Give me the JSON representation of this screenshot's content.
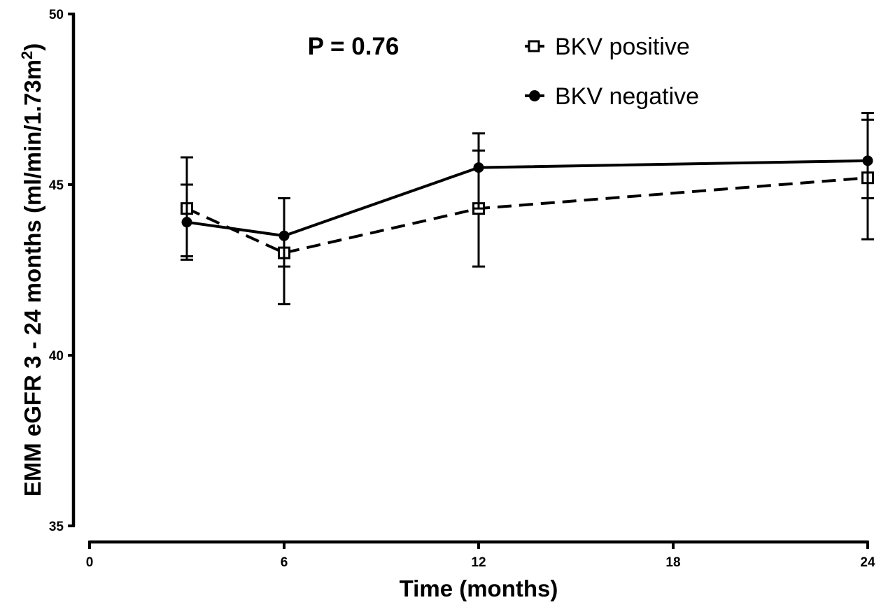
{
  "chart_data": {
    "type": "line",
    "title": "",
    "xlabel": "Time (months)",
    "ylabel_main": "EMM eGFR 3 - 24 months (ml/min/1.73m",
    "ylabel_superscript": "2",
    "ylabel_close": ")",
    "xlim": [
      0,
      24
    ],
    "ylim": [
      35,
      50
    ],
    "x_ticks": [
      "0",
      "6",
      "12",
      "18",
      "24"
    ],
    "x_tick_values": [
      0,
      6,
      12,
      18,
      24
    ],
    "y_ticks": [
      "35",
      "40",
      "45",
      "50"
    ],
    "y_tick_values": [
      35,
      40,
      45,
      50
    ],
    "grid": false,
    "legend_position": "top-right",
    "annotation": "P = 0.76",
    "series": [
      {
        "name": "BKV positive",
        "marker": "open-square",
        "line_style": "dashed",
        "color": "#000000",
        "x": [
          3,
          6,
          12,
          24
        ],
        "y": [
          44.3,
          43.0,
          44.3,
          45.2
        ],
        "error_lower": [
          42.9,
          41.5,
          42.6,
          43.4
        ],
        "error_upper": [
          45.0,
          44.6,
          46.0,
          46.9
        ]
      },
      {
        "name": "BKV negative",
        "marker": "filled-circle",
        "line_style": "solid",
        "color": "#000000",
        "x": [
          3,
          6,
          12,
          24
        ],
        "y": [
          43.9,
          43.5,
          45.5,
          45.7
        ],
        "error_lower": [
          42.8,
          42.6,
          44.3,
          44.6
        ],
        "error_upper": [
          45.8,
          44.6,
          46.5,
          47.1
        ]
      }
    ]
  }
}
